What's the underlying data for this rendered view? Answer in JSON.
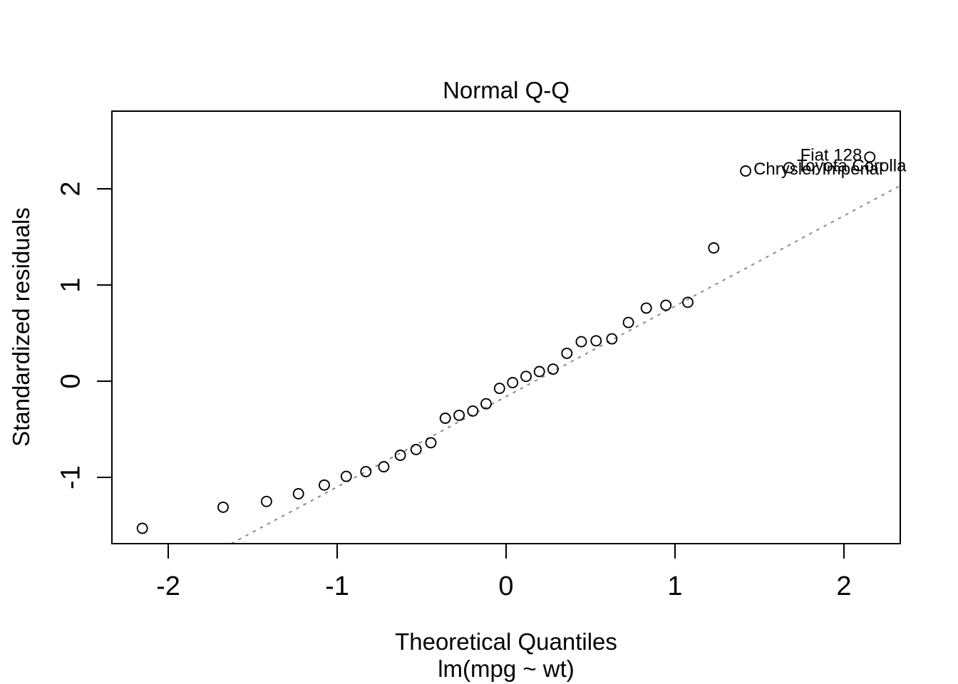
{
  "chart_data": {
    "type": "scatter",
    "title": "Normal Q-Q",
    "xlabel": "Theoretical Quantiles",
    "subtitle": "lm(mpg ~ wt)",
    "ylabel": "Standardized residuals",
    "xlim": [
      -2.33,
      2.335
    ],
    "ylim": [
      -1.69,
      2.81
    ],
    "x_ticks": [
      -2,
      -1,
      0,
      1,
      2
    ],
    "x_tick_labels": [
      "-2",
      "-1",
      "0",
      "1",
      "2"
    ],
    "y_ticks": [
      -1,
      0,
      1,
      2
    ],
    "y_tick_labels": [
      "-1",
      "0",
      "1",
      "2"
    ],
    "grid": false,
    "legend": null,
    "marker": "open-circle",
    "colors": {
      "points": "#000000",
      "ref_line": "#7f7f7f",
      "text": "#000000",
      "background": "#ffffff"
    },
    "points": [
      [
        -2.153,
        -1.53
      ],
      [
        -1.675,
        -1.31
      ],
      [
        -1.418,
        -1.25
      ],
      [
        -1.229,
        -1.17
      ],
      [
        -1.076,
        -1.08
      ],
      [
        -0.946,
        -0.99
      ],
      [
        -0.83,
        -0.94
      ],
      [
        -0.724,
        -0.89
      ],
      [
        -0.626,
        -0.77
      ],
      [
        -0.533,
        -0.71
      ],
      [
        -0.445,
        -0.64
      ],
      [
        -0.36,
        -0.385
      ],
      [
        -0.278,
        -0.355
      ],
      [
        -0.197,
        -0.31
      ],
      [
        -0.118,
        -0.235
      ],
      [
        -0.039,
        -0.075
      ],
      [
        0.039,
        -0.015
      ],
      [
        0.118,
        0.05
      ],
      [
        0.197,
        0.1
      ],
      [
        0.278,
        0.125
      ],
      [
        0.36,
        0.29
      ],
      [
        0.445,
        0.41
      ],
      [
        0.533,
        0.42
      ],
      [
        0.626,
        0.44
      ],
      [
        0.724,
        0.61
      ],
      [
        0.83,
        0.76
      ],
      [
        0.946,
        0.79
      ],
      [
        1.076,
        0.82
      ],
      [
        1.229,
        1.385
      ],
      [
        1.418,
        2.185
      ],
      [
        1.675,
        2.22
      ],
      [
        2.153,
        2.33
      ]
    ],
    "labeled_points": [
      {
        "label": "Fiat 128",
        "x": 2.153,
        "y": 2.33,
        "side": "left"
      },
      {
        "label": "Toyota Corolla",
        "x": 1.675,
        "y": 2.22,
        "side": "right"
      },
      {
        "label": "Chrysler Imperial",
        "x": 1.418,
        "y": 2.185,
        "side": "right"
      }
    ],
    "ref_line": {
      "slope": 0.94,
      "intercept": -0.16,
      "style": "dotted"
    }
  }
}
